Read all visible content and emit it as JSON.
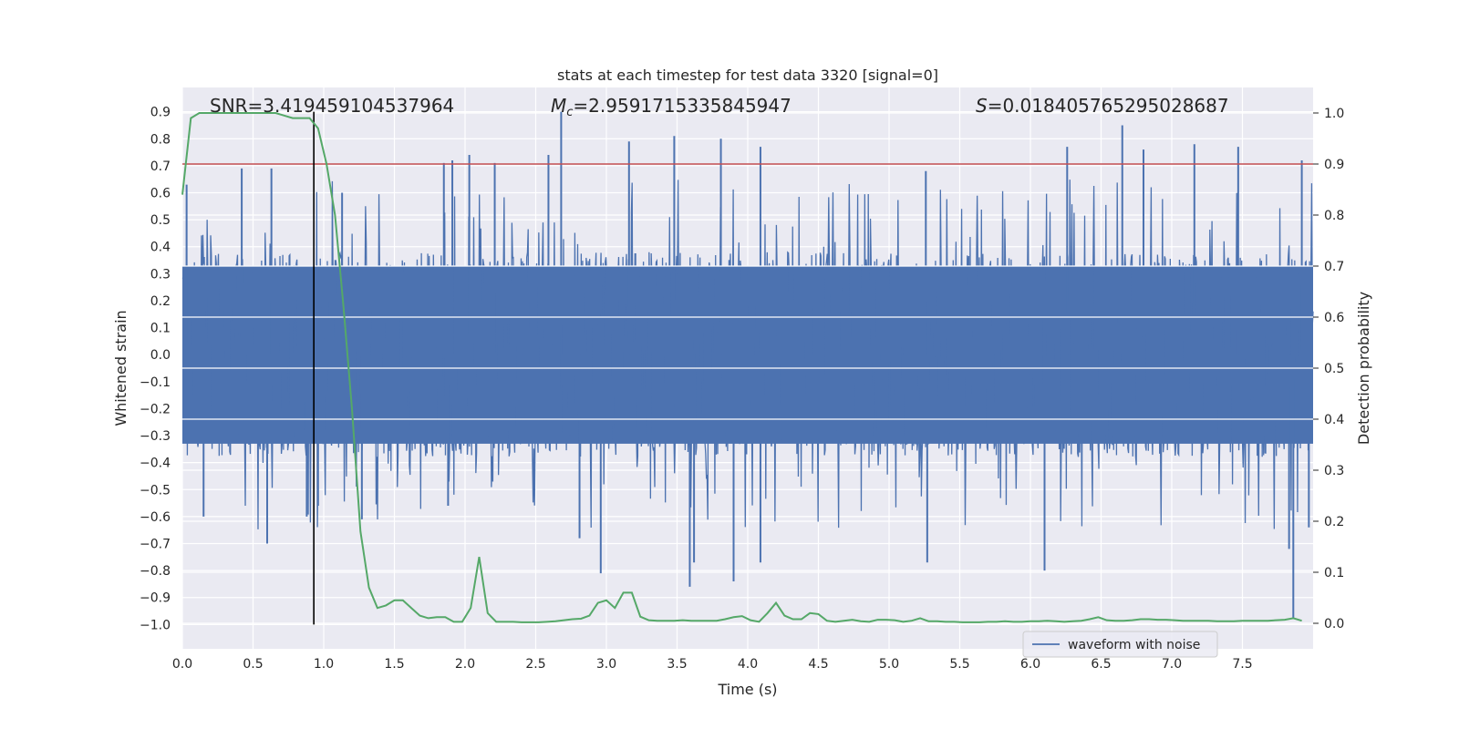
{
  "chart_data": {
    "type": "line",
    "title": "stats at each timestep for test data 3320 [signal=0]",
    "xlabel": "Time (s)",
    "ylabel_left": "Whitened strain",
    "ylabel_right": "Detection probability",
    "xlim": [
      0.0,
      8.0
    ],
    "ylim_left": [
      -1.09,
      0.99
    ],
    "ylim_right": [
      -0.05,
      1.05
    ],
    "x_ticks": [
      "0.0",
      "0.5",
      "1.0",
      "1.5",
      "2.0",
      "2.5",
      "3.0",
      "3.5",
      "4.0",
      "4.5",
      "5.0",
      "5.5",
      "6.0",
      "6.5",
      "7.0",
      "7.5"
    ],
    "x_tick_values": [
      0,
      0.5,
      1,
      1.5,
      2,
      2.5,
      3,
      3.5,
      4,
      4.5,
      5,
      5.5,
      6,
      6.5,
      7,
      7.5
    ],
    "y_ticks_left": [
      "0.9",
      "0.8",
      "0.7",
      "0.6",
      "0.5",
      "0.4",
      "0.3",
      "0.2",
      "0.1",
      "0.0",
      "−0.1",
      "−0.2",
      "−0.3",
      "−0.4",
      "−0.5",
      "−0.6",
      "−0.7",
      "−0.8",
      "−0.9",
      "−1.0"
    ],
    "y_tick_values_left": [
      0.9,
      0.8,
      0.7,
      0.6,
      0.5,
      0.4,
      0.3,
      0.2,
      0.1,
      0,
      -0.1,
      -0.2,
      -0.3,
      -0.4,
      -0.5,
      -0.6,
      -0.7,
      -0.8,
      -0.9,
      -1.0
    ],
    "y_ticks_right": [
      "1.0",
      "0.9",
      "0.8",
      "0.7",
      "0.6",
      "0.5",
      "0.4",
      "0.3",
      "0.2",
      "0.1",
      "0.0"
    ],
    "y_tick_values_right": [
      1.0,
      0.9,
      0.8,
      0.7,
      0.6,
      0.5,
      0.4,
      0.3,
      0.2,
      0.1,
      0.0
    ],
    "annotations": {
      "snr": "SNR=3.419459104537964",
      "mc_symbol": "M",
      "mc_sub": "c",
      "mc_value": "=2.9591715335845947",
      "s_symbol": "S",
      "s_value": "=0.018405765295028687"
    },
    "threshold": {
      "value": 0.9,
      "axis": "right",
      "color": "#c44e52"
    },
    "marker_time": 0.93,
    "waveform": {
      "name": "waveform with noise",
      "color": "#4c72b0",
      "samples": 1600,
      "typical_range": [
        -0.33,
        0.33
      ],
      "seed": 3320,
      "peaks": [
        {
          "t": 0.03,
          "v": 0.63
        },
        {
          "t": 0.15,
          "v": -0.6
        },
        {
          "t": 0.42,
          "v": 0.69
        },
        {
          "t": 0.6,
          "v": -0.7
        },
        {
          "t": 0.63,
          "v": 0.69
        },
        {
          "t": 0.88,
          "v": -0.6
        },
        {
          "t": 0.96,
          "v": -0.56
        },
        {
          "t": 1.13,
          "v": 0.6
        },
        {
          "t": 1.27,
          "v": -0.61
        },
        {
          "t": 1.85,
          "v": 0.71
        },
        {
          "t": 1.88,
          "v": -0.56
        },
        {
          "t": 1.91,
          "v": 0.72
        },
        {
          "t": 2.03,
          "v": 0.74
        },
        {
          "t": 2.21,
          "v": 0.71
        },
        {
          "t": 2.59,
          "v": 0.74
        },
        {
          "t": 2.68,
          "v": 0.9
        },
        {
          "t": 2.81,
          "v": -0.68
        },
        {
          "t": 2.96,
          "v": -0.81
        },
        {
          "t": 3.16,
          "v": 0.79
        },
        {
          "t": 3.48,
          "v": 0.81
        },
        {
          "t": 3.59,
          "v": -0.86
        },
        {
          "t": 3.62,
          "v": -0.77
        },
        {
          "t": 3.81,
          "v": 0.8
        },
        {
          "t": 3.9,
          "v": -0.84
        },
        {
          "t": 4.09,
          "v": 0.77
        },
        {
          "t": 4.09,
          "v": -0.77
        },
        {
          "t": 5.27,
          "v": -0.77
        },
        {
          "t": 5.26,
          "v": 0.68
        },
        {
          "t": 6.1,
          "v": -0.8
        },
        {
          "t": 6.26,
          "v": 0.77
        },
        {
          "t": 6.65,
          "v": 0.85
        },
        {
          "t": 6.8,
          "v": 0.76
        },
        {
          "t": 7.16,
          "v": 0.78
        },
        {
          "t": 7.47,
          "v": 0.77
        },
        {
          "t": 7.83,
          "v": -0.72
        },
        {
          "t": 7.86,
          "v": -0.98
        },
        {
          "t": 7.92,
          "v": 0.72
        },
        {
          "t": 7.97,
          "v": -0.64
        }
      ]
    },
    "probability": {
      "color": "#55a868",
      "t": [
        0.0,
        0.06,
        0.12,
        0.18,
        0.24,
        0.3,
        0.36,
        0.42,
        0.48,
        0.54,
        0.6,
        0.66,
        0.72,
        0.78,
        0.84,
        0.9,
        0.96,
        1.02,
        1.08,
        1.14,
        1.2,
        1.26,
        1.32,
        1.38,
        1.44,
        1.5,
        1.56,
        1.62,
        1.68,
        1.74,
        1.8,
        1.86,
        1.92,
        1.98,
        2.04,
        2.1,
        2.16,
        2.22,
        2.28,
        2.34,
        2.4,
        2.46,
        2.52,
        2.58,
        2.64,
        2.7,
        2.76,
        2.82,
        2.88,
        2.94,
        3.0,
        3.06,
        3.12,
        3.18,
        3.24,
        3.3,
        3.36,
        3.42,
        3.48,
        3.54,
        3.6,
        3.66,
        3.72,
        3.78,
        3.84,
        3.9,
        3.96,
        4.02,
        4.08,
        4.14,
        4.2,
        4.26,
        4.32,
        4.38,
        4.44,
        4.5,
        4.56,
        4.62,
        4.68,
        4.74,
        4.8,
        4.86,
        4.92,
        4.98,
        5.04,
        5.1,
        5.16,
        5.22,
        5.28,
        5.34,
        5.4,
        5.46,
        5.52,
        5.58,
        5.64,
        5.7,
        5.76,
        5.82,
        5.88,
        5.94,
        6.0,
        6.06,
        6.12,
        6.18,
        6.24,
        6.3,
        6.36,
        6.42,
        6.48,
        6.54,
        6.6,
        6.66,
        6.72,
        6.78,
        6.84,
        6.9,
        6.96,
        7.02,
        7.08,
        7.14,
        7.2,
        7.26,
        7.32,
        7.38,
        7.44,
        7.5,
        7.56,
        7.62,
        7.68,
        7.74,
        7.8,
        7.86,
        7.92
      ],
      "p": [
        0.84,
        0.99,
        1.0,
        1.0,
        1.0,
        1.0,
        1.0,
        1.0,
        1.0,
        1.0,
        1.0,
        1.0,
        0.995,
        0.99,
        0.99,
        0.99,
        0.97,
        0.9,
        0.8,
        0.62,
        0.42,
        0.18,
        0.07,
        0.03,
        0.035,
        0.045,
        0.045,
        0.03,
        0.015,
        0.01,
        0.012,
        0.012,
        0.003,
        0.003,
        0.03,
        0.13,
        0.02,
        0.003,
        0.003,
        0.003,
        0.002,
        0.002,
        0.002,
        0.003,
        0.004,
        0.006,
        0.008,
        0.009,
        0.015,
        0.04,
        0.045,
        0.03,
        0.06,
        0.06,
        0.013,
        0.006,
        0.005,
        0.005,
        0.005,
        0.006,
        0.005,
        0.005,
        0.005,
        0.005,
        0.008,
        0.012,
        0.014,
        0.006,
        0.003,
        0.02,
        0.04,
        0.015,
        0.008,
        0.008,
        0.02,
        0.018,
        0.005,
        0.003,
        0.005,
        0.007,
        0.004,
        0.003,
        0.007,
        0.007,
        0.006,
        0.003,
        0.005,
        0.01,
        0.004,
        0.004,
        0.003,
        0.003,
        0.002,
        0.002,
        0.002,
        0.003,
        0.003,
        0.004,
        0.003,
        0.003,
        0.004,
        0.004,
        0.005,
        0.004,
        0.003,
        0.004,
        0.005,
        0.008,
        0.012,
        0.006,
        0.005,
        0.005,
        0.006,
        0.008,
        0.008,
        0.007,
        0.007,
        0.006,
        0.005,
        0.005,
        0.005,
        0.005,
        0.004,
        0.004,
        0.004,
        0.005,
        0.005,
        0.005,
        0.005,
        0.006,
        0.007,
        0.01,
        0.005
      ]
    },
    "legend": {
      "label": "waveform with noise",
      "placement": "lower-right"
    }
  }
}
